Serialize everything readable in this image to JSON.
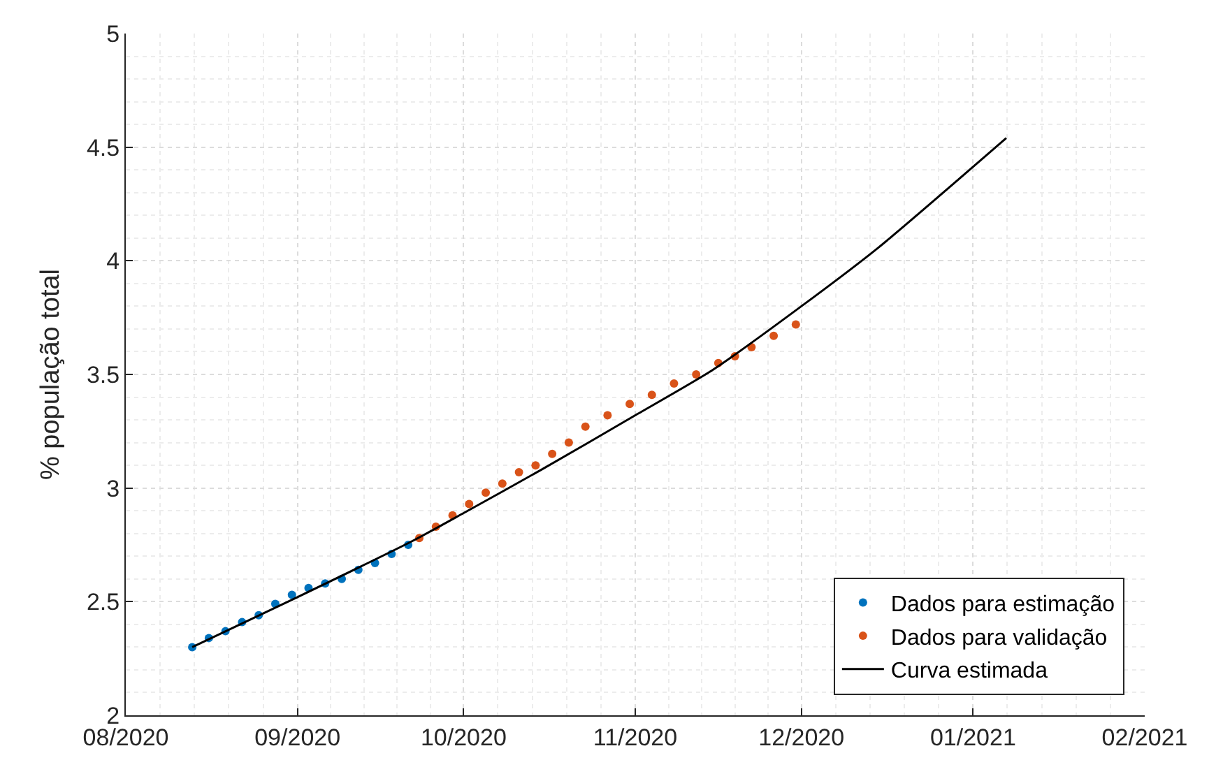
{
  "chart_data": {
    "type": "scatter",
    "ylabel": "% população total",
    "legend": "bottom right",
    "grid": true,
    "xlim": [
      "2020-08-01",
      "2021-02-01"
    ],
    "xticks": [
      {
        "value": "2020-08-01",
        "label": "08/2020"
      },
      {
        "value": "2020-09-01",
        "label": "09/2020"
      },
      {
        "value": "2020-10-01",
        "label": "10/2020"
      },
      {
        "value": "2020-11-01",
        "label": "11/2020"
      },
      {
        "value": "2020-12-01",
        "label": "12/2020"
      },
      {
        "value": "2021-01-01",
        "label": "01/2021"
      },
      {
        "value": "2021-02-01",
        "label": "02/2021"
      }
    ],
    "ylim": [
      2,
      5
    ],
    "yticks": [
      2,
      2.5,
      3,
      3.5,
      4,
      4.5,
      5
    ],
    "series": [
      {
        "name": "Dados para estimação",
        "type": "scatter",
        "marker": "circle",
        "color": "#0072bd",
        "x": [
          "2020-08-13",
          "2020-08-16",
          "2020-08-19",
          "2020-08-22",
          "2020-08-25",
          "2020-08-28",
          "2020-08-31",
          "2020-09-03",
          "2020-09-06",
          "2020-09-09",
          "2020-09-12",
          "2020-09-15",
          "2020-09-18",
          "2020-09-21"
        ],
        "values": [
          2.3,
          2.34,
          2.37,
          2.41,
          2.44,
          2.49,
          2.53,
          2.56,
          2.58,
          2.6,
          2.64,
          2.67,
          2.71,
          2.75
        ]
      },
      {
        "name": "Dados para validação",
        "type": "scatter",
        "marker": "circle",
        "color": "#d95319",
        "x": [
          "2020-09-23",
          "2020-09-26",
          "2020-09-29",
          "2020-10-02",
          "2020-10-05",
          "2020-10-08",
          "2020-10-11",
          "2020-10-14",
          "2020-10-17",
          "2020-10-20",
          "2020-10-23",
          "2020-10-27",
          "2020-10-31",
          "2020-11-04",
          "2020-11-08",
          "2020-11-12",
          "2020-11-16",
          "2020-11-19",
          "2020-11-22",
          "2020-11-26",
          "2020-11-30"
        ],
        "values": [
          2.78,
          2.83,
          2.88,
          2.93,
          2.98,
          3.02,
          3.07,
          3.1,
          3.15,
          3.2,
          3.27,
          3.32,
          3.37,
          3.41,
          3.46,
          3.5,
          3.55,
          3.58,
          3.62,
          3.67,
          3.72
        ]
      },
      {
        "name": "Curva estimada",
        "type": "line",
        "line_style": "solid",
        "color": "#000000",
        "x": [
          "2020-08-13",
          "2020-09-01",
          "2020-09-22",
          "2020-10-01",
          "2020-10-15",
          "2020-11-01",
          "2020-11-15",
          "2020-12-01",
          "2020-12-15",
          "2021-01-07"
        ],
        "values": [
          2.3,
          2.52,
          2.77,
          2.89,
          3.08,
          3.32,
          3.52,
          3.8,
          4.06,
          4.54
        ]
      }
    ]
  }
}
